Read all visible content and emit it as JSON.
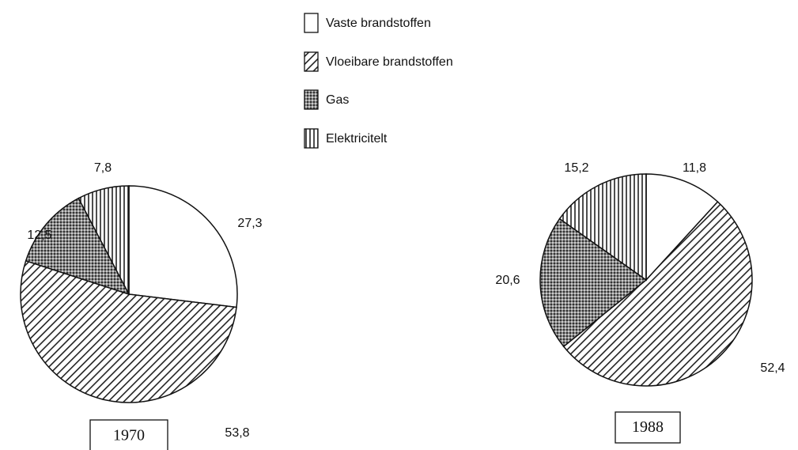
{
  "chart_data": [
    {
      "type": "pie",
      "title": "1970",
      "categories": [
        "Vaste brandstoffen",
        "Vloeibare brandstoffen",
        "Gas",
        "Elektricitelt"
      ],
      "patterns": [
        "none",
        "diagonal",
        "crosshatch",
        "vertical"
      ],
      "values": [
        27.3,
        53.8,
        12.5,
        7.8
      ],
      "value_labels": [
        "27,3",
        "53,8",
        "12,5",
        "7,8"
      ]
    },
    {
      "type": "pie",
      "title": "1988",
      "values": [
        11.8,
        52.4,
        20.6,
        15.2
      ],
      "value_labels": [
        "11,8",
        "52,4",
        "20,6",
        "15,2"
      ]
    }
  ]
}
